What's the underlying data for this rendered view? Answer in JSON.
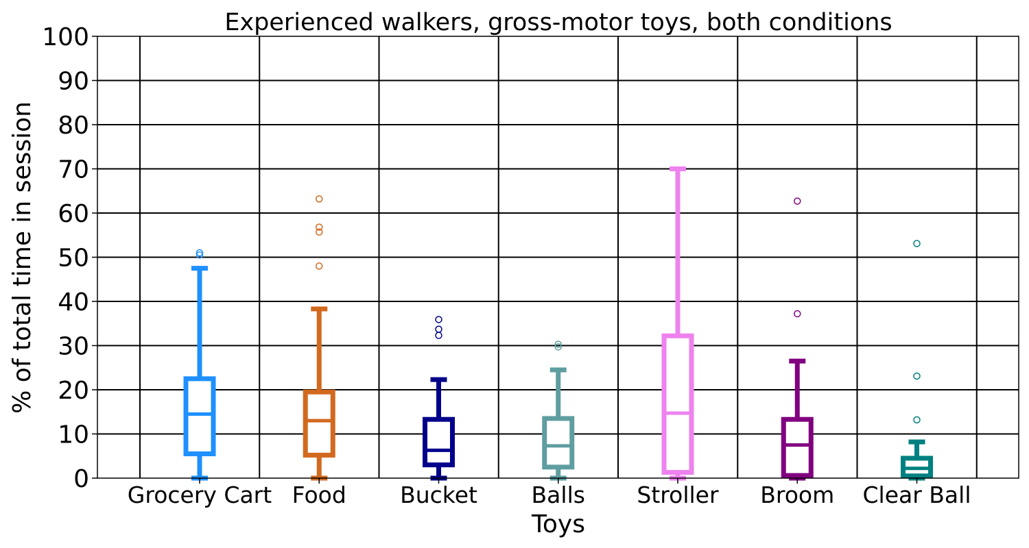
{
  "chart_data": {
    "type": "box",
    "title": "Experienced walkers, gross-motor toys, both conditions",
    "xlabel": "Toys",
    "ylabel": "% of total time in session",
    "ylim": [
      0,
      100
    ],
    "yticks": [
      0,
      10,
      20,
      30,
      40,
      50,
      60,
      70,
      80,
      90,
      100
    ],
    "grid": true,
    "categories": [
      "Grocery Cart",
      "Food",
      "Bucket",
      "Balls",
      "Stroller",
      "Broom",
      "Clear Ball"
    ],
    "boxes": [
      {
        "name": "Grocery Cart",
        "color": "#1e90ff",
        "whisker_low": 0,
        "q1": 5.5,
        "median": 14.5,
        "q3": 22.5,
        "whisker_high": 47.5,
        "outliers": [
          50.5,
          51
        ]
      },
      {
        "name": "Food",
        "color": "#d2691e",
        "whisker_low": 0,
        "q1": 5.2,
        "median": 13,
        "q3": 19.5,
        "whisker_high": 38.3,
        "outliers": [
          48,
          55.7,
          56.8,
          63.2
        ]
      },
      {
        "name": "Bucket",
        "color": "#00008b",
        "whisker_low": 0,
        "q1": 3,
        "median": 6.3,
        "q3": 13.3,
        "whisker_high": 22.3,
        "outliers": [
          32.3,
          33.7,
          35.9
        ]
      },
      {
        "name": "Balls",
        "color": "#5f9ea0",
        "whisker_low": 0,
        "q1": 2.5,
        "median": 7.3,
        "q3": 13.5,
        "whisker_high": 24.5,
        "outliers": [
          29.7,
          30.3
        ]
      },
      {
        "name": "Stroller",
        "color": "#ee82ee",
        "whisker_low": 0,
        "q1": 1.3,
        "median": 14.7,
        "q3": 32.2,
        "whisker_high": 70,
        "outliers": []
      },
      {
        "name": "Broom",
        "color": "#800080",
        "whisker_low": 0,
        "q1": 0.6,
        "median": 7.5,
        "q3": 13.3,
        "whisker_high": 26.5,
        "outliers": [
          37.2,
          62.7
        ]
      },
      {
        "name": "Clear Ball",
        "color": "#008080",
        "whisker_low": 0,
        "q1": 0.5,
        "median": 2.2,
        "q3": 4.5,
        "whisker_high": 8.2,
        "outliers": [
          13.2,
          23.1,
          53.1
        ]
      }
    ]
  }
}
